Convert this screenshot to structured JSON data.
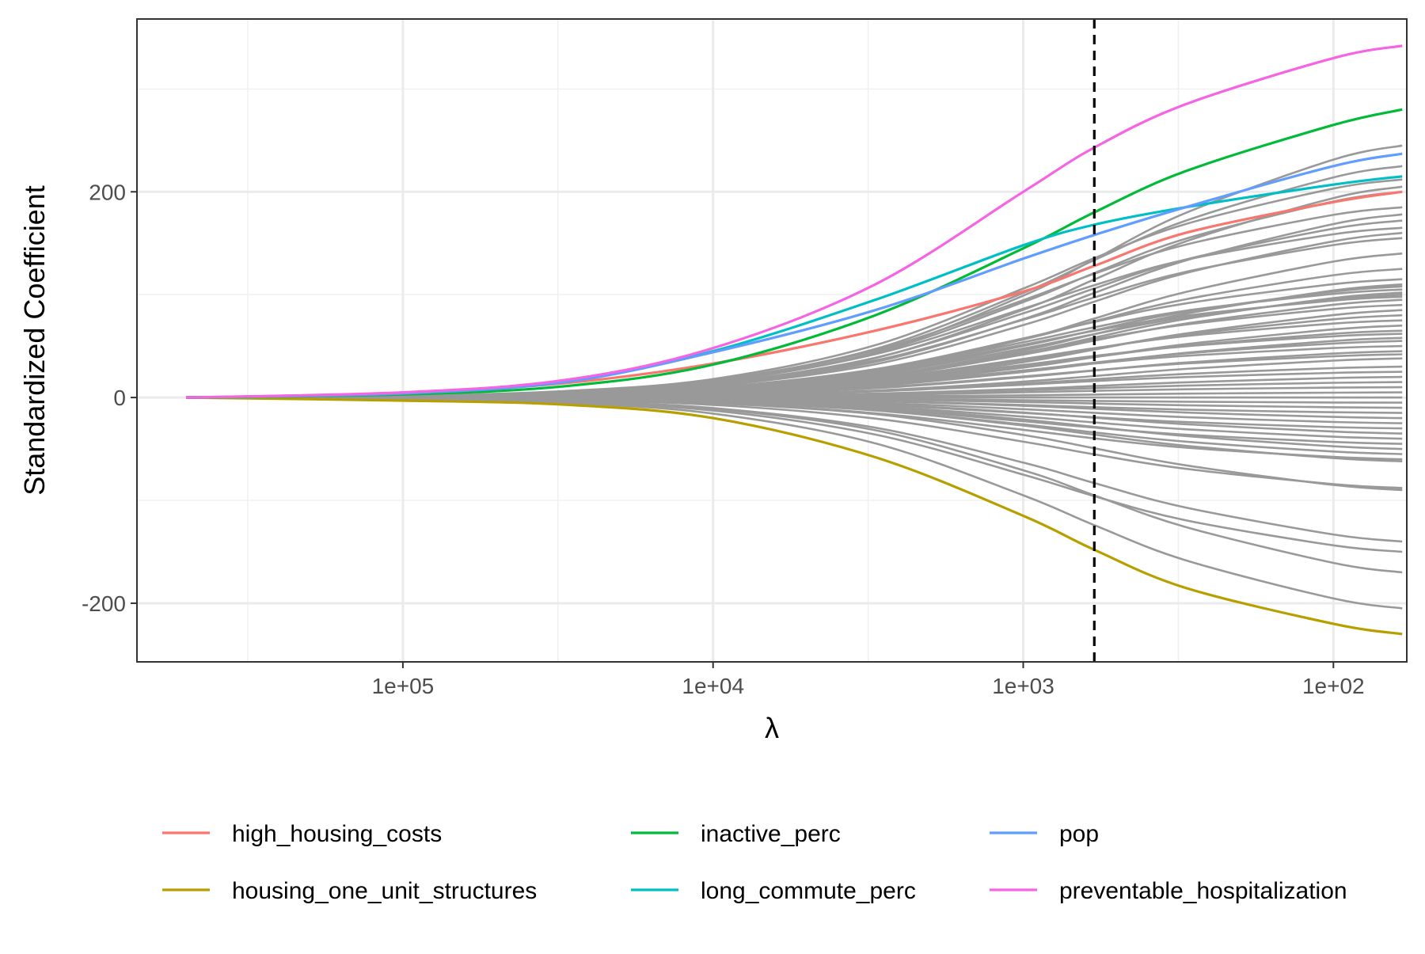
{
  "chart_data": {
    "type": "line",
    "title": "",
    "xlabel": "λ",
    "ylabel": "Standardized Coefficient",
    "x_scale": "log10, reversed (λ decreases to the right)",
    "xlim": [
      720000,
      58
    ],
    "ylim": [
      -257,
      368
    ],
    "x_ticks": [
      {
        "value": 100000,
        "label": "1e+05"
      },
      {
        "value": 10000,
        "label": "1e+04"
      },
      {
        "value": 1000,
        "label": "1e+03"
      },
      {
        "value": 100,
        "label": "1e+02"
      }
    ],
    "y_ticks": [
      {
        "value": -200,
        "label": "-200"
      },
      {
        "value": 0,
        "label": "0"
      },
      {
        "value": 200,
        "label": "200"
      }
    ],
    "grid": true,
    "selected_lambda": 590,
    "selected_lambda_style": "dashed vertical line",
    "legend_position": "bottom",
    "highlighted_series": [
      {
        "name": "high_housing_costs",
        "color": "#F8766D",
        "points": [
          [
            500000,
            0
          ],
          [
            100000,
            4
          ],
          [
            30000,
            14
          ],
          [
            10000,
            33
          ],
          [
            3000,
            65
          ],
          [
            1000,
            103
          ],
          [
            590,
            128
          ],
          [
            300,
            160
          ],
          [
            100,
            190
          ],
          [
            60,
            200
          ]
        ]
      },
      {
        "name": "housing_one_unit_structures",
        "color": "#B79F00",
        "points": [
          [
            500000,
            0
          ],
          [
            100000,
            -3
          ],
          [
            30000,
            -7
          ],
          [
            10000,
            -20
          ],
          [
            3000,
            -58
          ],
          [
            1000,
            -115
          ],
          [
            590,
            -148
          ],
          [
            300,
            -185
          ],
          [
            100,
            -220
          ],
          [
            60,
            -230
          ]
        ]
      },
      {
        "name": "inactive_perc",
        "color": "#00BA38",
        "points": [
          [
            500000,
            0
          ],
          [
            100000,
            3
          ],
          [
            30000,
            11
          ],
          [
            10000,
            32
          ],
          [
            3000,
            80
          ],
          [
            1000,
            145
          ],
          [
            590,
            180
          ],
          [
            300,
            220
          ],
          [
            100,
            265
          ],
          [
            60,
            280
          ]
        ]
      },
      {
        "name": "long_commute_perc",
        "color": "#00BFC4",
        "points": [
          [
            500000,
            0
          ],
          [
            100000,
            4
          ],
          [
            30000,
            16
          ],
          [
            10000,
            45
          ],
          [
            3000,
            95
          ],
          [
            1000,
            148
          ],
          [
            590,
            168
          ],
          [
            300,
            185
          ],
          [
            100,
            207
          ],
          [
            60,
            215
          ]
        ]
      },
      {
        "name": "pop",
        "color": "#619CFF",
        "points": [
          [
            500000,
            0
          ],
          [
            100000,
            4
          ],
          [
            30000,
            15
          ],
          [
            10000,
            44
          ],
          [
            3000,
            85
          ],
          [
            1000,
            135
          ],
          [
            590,
            158
          ],
          [
            300,
            185
          ],
          [
            100,
            225
          ],
          [
            60,
            237
          ]
        ]
      },
      {
        "name": "preventable_hospitalization",
        "color": "#F564E3",
        "points": [
          [
            500000,
            0
          ],
          [
            100000,
            5
          ],
          [
            30000,
            17
          ],
          [
            10000,
            48
          ],
          [
            3000,
            110
          ],
          [
            1000,
            200
          ],
          [
            590,
            243
          ],
          [
            300,
            285
          ],
          [
            100,
            330
          ],
          [
            60,
            342
          ]
        ]
      }
    ],
    "other_series_color": "#999999",
    "other_series_count": 60,
    "other_series_final_values": [
      245,
      225,
      212,
      205,
      200,
      185,
      178,
      172,
      165,
      160,
      155,
      140,
      125,
      115,
      110,
      108,
      105,
      102,
      100,
      98,
      95,
      90,
      85,
      80,
      75,
      70,
      65,
      62,
      58,
      55,
      50,
      45,
      42,
      38,
      30,
      25,
      20,
      15,
      10,
      5,
      0,
      -5,
      -10,
      -15,
      -20,
      -25,
      -30,
      -35,
      -40,
      -45,
      -50,
      -55,
      -60,
      -62,
      -88,
      -90,
      -140,
      -150,
      -170,
      -205
    ]
  }
}
